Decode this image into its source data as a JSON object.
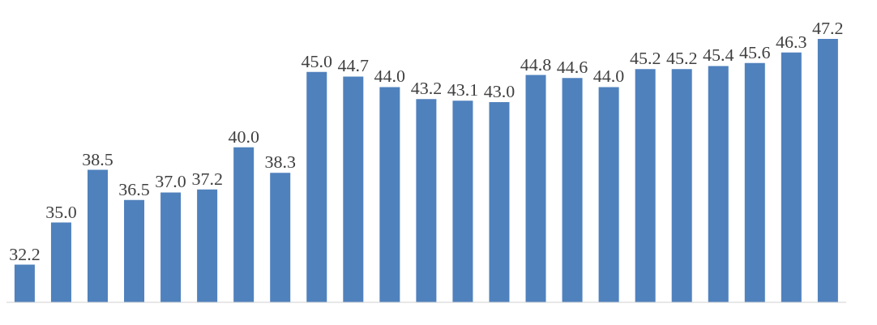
{
  "chart_data": {
    "type": "bar",
    "categories": [
      null,
      null,
      null,
      null,
      null,
      null,
      null,
      null,
      null,
      null,
      null,
      null,
      null,
      null,
      null,
      null,
      null,
      null,
      null,
      null,
      null,
      null,
      null
    ],
    "values": [
      32.2,
      35.0,
      38.5,
      36.5,
      37.0,
      37.2,
      40.0,
      38.3,
      45.0,
      44.7,
      44.0,
      43.2,
      43.1,
      43.0,
      44.8,
      44.6,
      44.0,
      45.2,
      45.2,
      45.4,
      45.6,
      46.3,
      47.2
    ],
    "value_labels": [
      "32.2",
      "35.0",
      "38.5",
      "36.5",
      "37.0",
      "37.2",
      "40.0",
      "38.3",
      "45.0",
      "44.7",
      "44.0",
      "43.2",
      "43.1",
      "43.0",
      "44.8",
      "44.6",
      "44.0",
      "45.2",
      "45.2",
      "45.4",
      "45.6",
      "46.3",
      "47.2"
    ],
    "color": "#4f81bd",
    "ylim": [
      29.7,
      47.2
    ]
  }
}
